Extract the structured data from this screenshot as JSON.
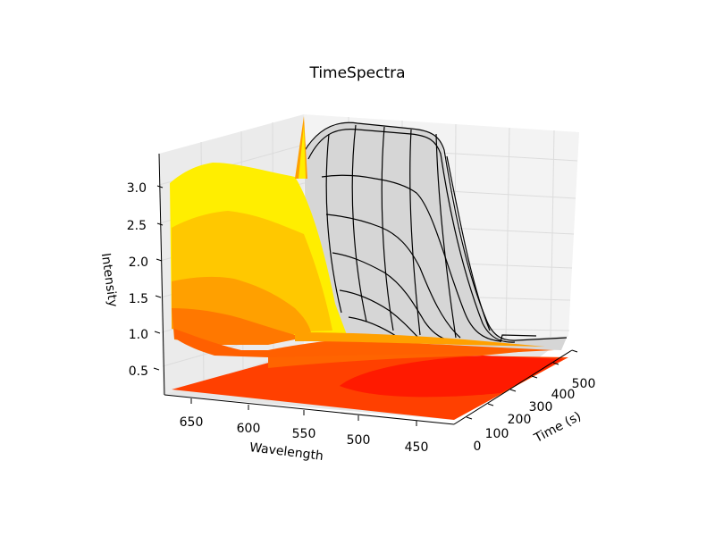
{
  "chart_data": {
    "type": "surface3d",
    "title": "TimeSpectra",
    "xlabel": "Wavelength",
    "ylabel": "Time (s)",
    "zlabel": "Intensity",
    "x_ticks": [
      "650",
      "600",
      "550",
      "500",
      "450"
    ],
    "y_ticks": [
      "0",
      "100",
      "200",
      "300",
      "400",
      "500"
    ],
    "z_ticks": [
      "0.5",
      "1.0",
      "1.5",
      "2.0",
      "2.5",
      "3.0"
    ],
    "xlim": [
      420,
      680
    ],
    "ylim": [
      0,
      540
    ],
    "zlim": [
      0.1,
      3.3
    ],
    "grid": true,
    "series": [
      {
        "kind": "wireframe",
        "color": "#000000",
        "surface_fill": "#d9d9d9",
        "peak_intensity": 3.1,
        "baseline_intensity": 0.25
      },
      {
        "kind": "contour-filled-side",
        "colormap": "autumn",
        "levels": [
          0.25,
          0.5,
          0.75,
          1.0,
          1.5,
          2.0,
          2.5,
          3.0
        ]
      },
      {
        "kind": "contour-filled-floor",
        "colormap": "autumn"
      }
    ],
    "colors": {
      "yellow": "#ffee00",
      "gold": "#ffc800",
      "orange": "#ffa000",
      "dark_orange": "#ff7800",
      "red_orange": "#ff4000",
      "red": "#ff1a00",
      "pane_back": "#f2f2f2",
      "pane_side": "#ececec",
      "grid": "#e0e0e0"
    }
  }
}
